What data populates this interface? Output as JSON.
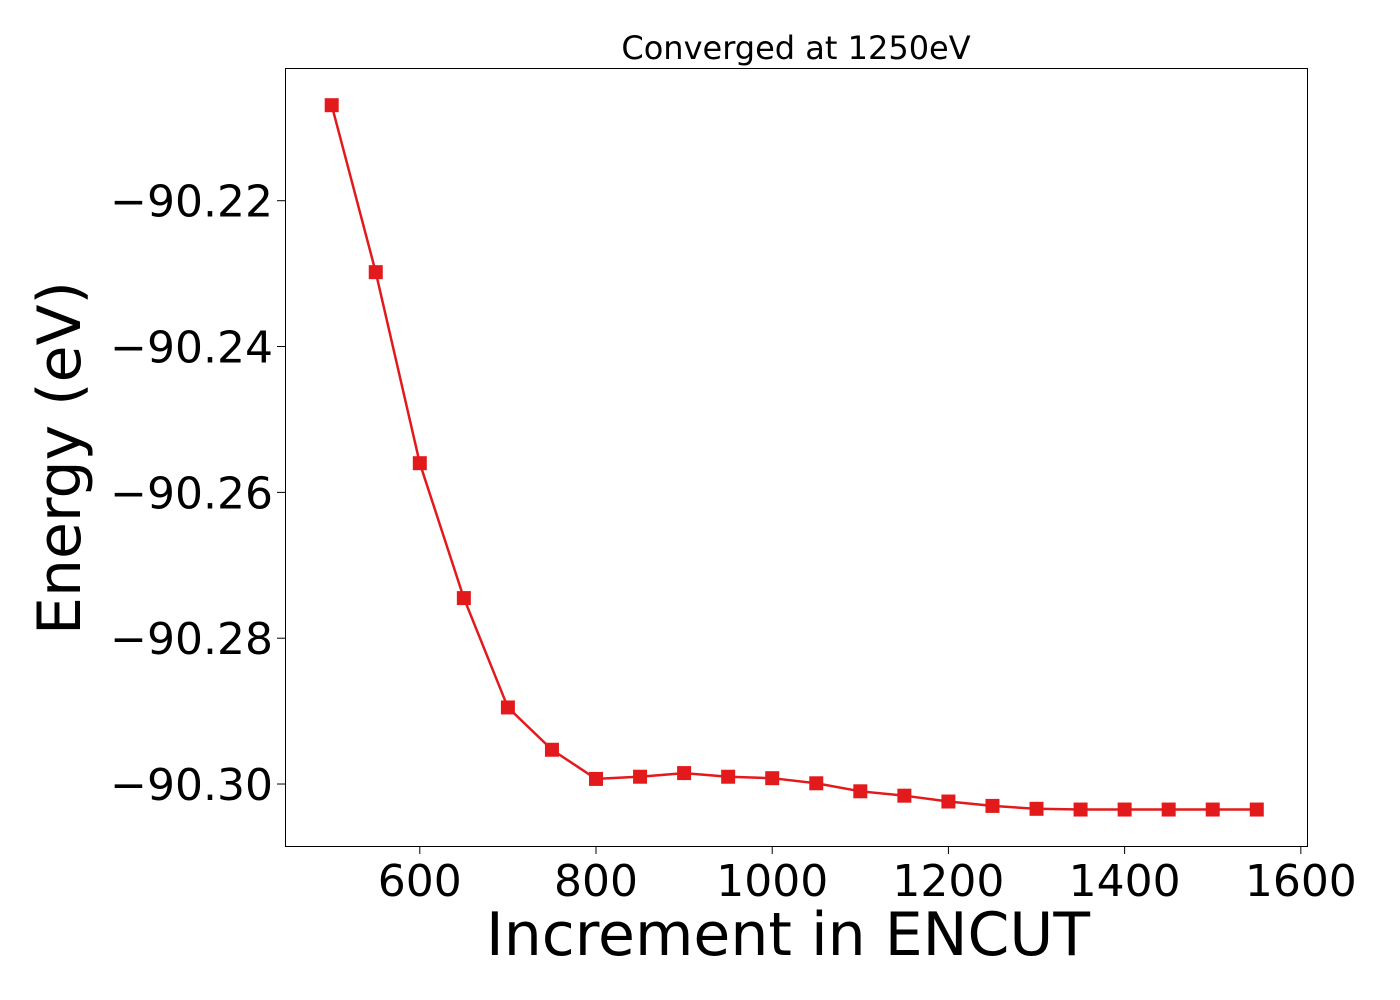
{
  "chart_data": {
    "type": "line",
    "title": "Converged at 1250eV",
    "xlabel": "Increment in ENCUT",
    "ylabel": "Energy (eV)",
    "xlim": [
      447,
      1607
    ],
    "ylim": [
      -90.3085,
      -90.2018
    ],
    "x_ticks": [
      600,
      800,
      1000,
      1200,
      1400,
      1600
    ],
    "y_ticks": [
      -90.22,
      -90.24,
      -90.26,
      -90.28,
      -90.3
    ],
    "x_tick_labels": [
      "600",
      "800",
      "1000",
      "1200",
      "1400",
      "1600"
    ],
    "y_tick_labels": [
      "−90.22",
      "−90.24",
      "−90.26",
      "−90.28",
      "−90.30"
    ],
    "grid": false,
    "series": [
      {
        "color": "#e31a1c",
        "marker": "square",
        "x": [
          500,
          550,
          600,
          650,
          700,
          750,
          800,
          850,
          900,
          950,
          1000,
          1050,
          1100,
          1150,
          1200,
          1250,
          1300,
          1350,
          1400,
          1450,
          1500,
          1550
        ],
        "y": [
          -90.2069,
          -90.2298,
          -90.256,
          -90.2745,
          -90.2895,
          -90.2953,
          -90.2993,
          -90.299,
          -90.2985,
          -90.299,
          -90.2992,
          -90.2999,
          -90.301,
          -90.3016,
          -90.3024,
          -90.303,
          -90.3034,
          -90.3035,
          -90.3035,
          -90.3035,
          -90.3035,
          -90.3035
        ]
      }
    ]
  }
}
